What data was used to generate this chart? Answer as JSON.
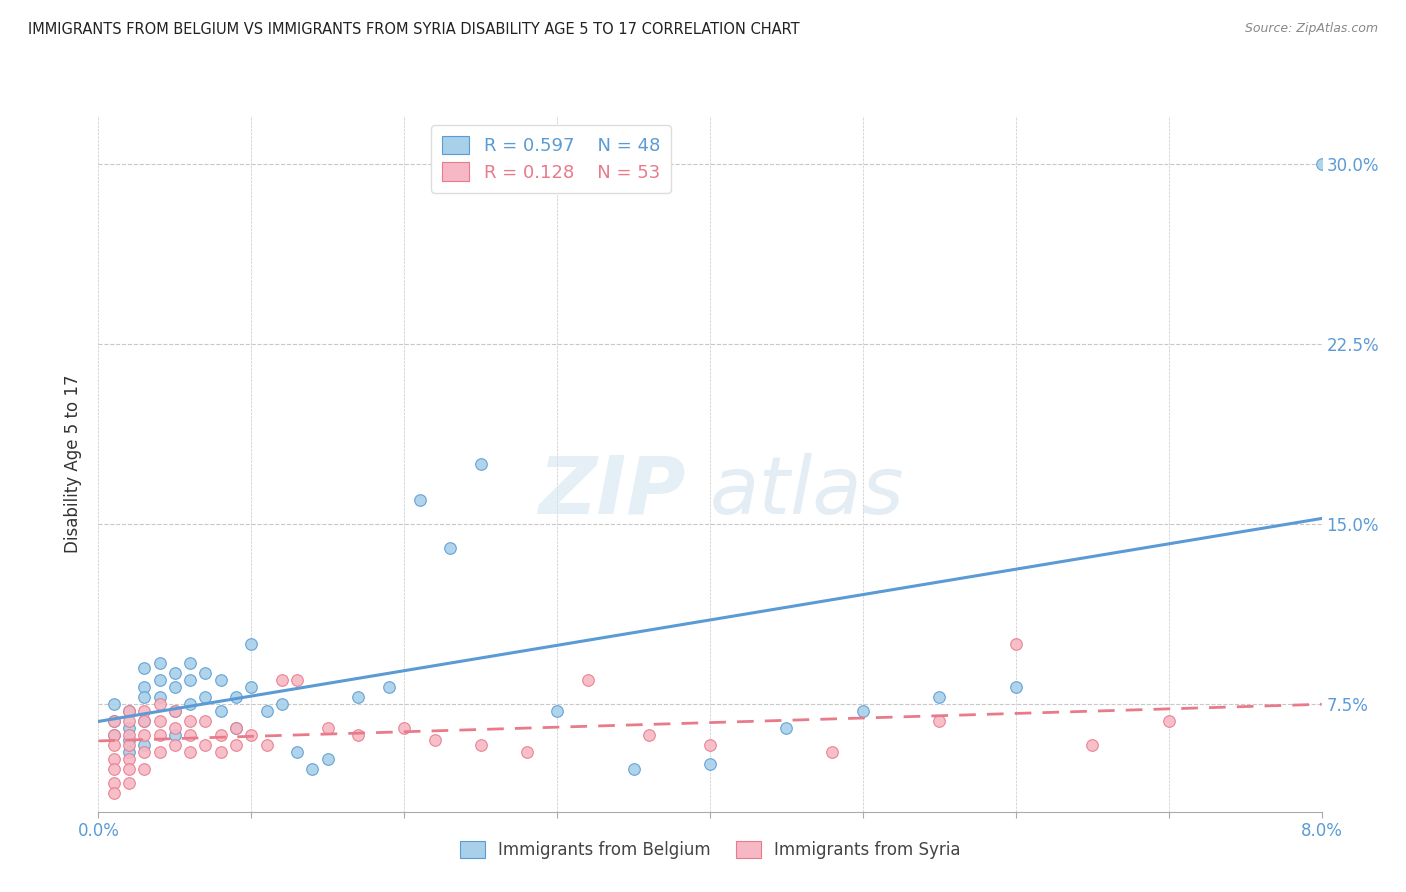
{
  "title": "IMMIGRANTS FROM BELGIUM VS IMMIGRANTS FROM SYRIA DISABILITY AGE 5 TO 17 CORRELATION CHART",
  "source": "Source: ZipAtlas.com",
  "ylabel": "Disability Age 5 to 17",
  "belgium_R": 0.597,
  "belgium_N": 48,
  "syria_R": 0.128,
  "syria_N": 53,
  "belgium_color": "#A8D0E8",
  "syria_color": "#F5B8C4",
  "belgium_line_color": "#5B9BD5",
  "syria_line_color": "#E87A8A",
  "xlim": [
    0.0,
    0.08
  ],
  "ylim": [
    0.03,
    0.32
  ],
  "yticks": [
    0.075,
    0.15,
    0.225,
    0.3
  ],
  "yticklabels": [
    "7.5%",
    "15.0%",
    "22.5%",
    "30.0%"
  ],
  "xtick_labels_show": [
    "0.0%",
    "8.0%"
  ],
  "belgium_x": [
    0.001,
    0.001,
    0.001,
    0.002,
    0.002,
    0.002,
    0.002,
    0.003,
    0.003,
    0.003,
    0.003,
    0.003,
    0.004,
    0.004,
    0.004,
    0.005,
    0.005,
    0.005,
    0.005,
    0.006,
    0.006,
    0.006,
    0.007,
    0.007,
    0.008,
    0.008,
    0.009,
    0.009,
    0.01,
    0.01,
    0.011,
    0.012,
    0.013,
    0.014,
    0.015,
    0.017,
    0.019,
    0.021,
    0.023,
    0.025,
    0.03,
    0.035,
    0.04,
    0.045,
    0.05,
    0.055,
    0.06,
    0.08
  ],
  "belgium_y": [
    0.068,
    0.075,
    0.062,
    0.072,
    0.065,
    0.06,
    0.055,
    0.09,
    0.082,
    0.078,
    0.068,
    0.058,
    0.092,
    0.085,
    0.078,
    0.088,
    0.082,
    0.072,
    0.062,
    0.092,
    0.085,
    0.075,
    0.088,
    0.078,
    0.085,
    0.072,
    0.078,
    0.065,
    0.1,
    0.082,
    0.072,
    0.075,
    0.055,
    0.048,
    0.052,
    0.078,
    0.082,
    0.16,
    0.14,
    0.175,
    0.072,
    0.048,
    0.05,
    0.065,
    0.072,
    0.078,
    0.082,
    0.3
  ],
  "syria_x": [
    0.001,
    0.001,
    0.001,
    0.001,
    0.001,
    0.001,
    0.001,
    0.002,
    0.002,
    0.002,
    0.002,
    0.002,
    0.002,
    0.002,
    0.003,
    0.003,
    0.003,
    0.003,
    0.003,
    0.004,
    0.004,
    0.004,
    0.004,
    0.005,
    0.005,
    0.005,
    0.006,
    0.006,
    0.006,
    0.007,
    0.007,
    0.008,
    0.008,
    0.009,
    0.009,
    0.01,
    0.011,
    0.012,
    0.013,
    0.015,
    0.017,
    0.02,
    0.022,
    0.025,
    0.028,
    0.032,
    0.036,
    0.04,
    0.048,
    0.055,
    0.06,
    0.065,
    0.07
  ],
  "syria_y": [
    0.068,
    0.062,
    0.058,
    0.052,
    0.048,
    0.042,
    0.038,
    0.072,
    0.068,
    0.062,
    0.058,
    0.052,
    0.048,
    0.042,
    0.072,
    0.068,
    0.062,
    0.055,
    0.048,
    0.075,
    0.068,
    0.062,
    0.055,
    0.065,
    0.072,
    0.058,
    0.068,
    0.062,
    0.055,
    0.068,
    0.058,
    0.062,
    0.055,
    0.065,
    0.058,
    0.062,
    0.058,
    0.085,
    0.085,
    0.065,
    0.062,
    0.065,
    0.06,
    0.058,
    0.055,
    0.085,
    0.062,
    0.058,
    0.055,
    0.068,
    0.1,
    0.058,
    0.068
  ]
}
